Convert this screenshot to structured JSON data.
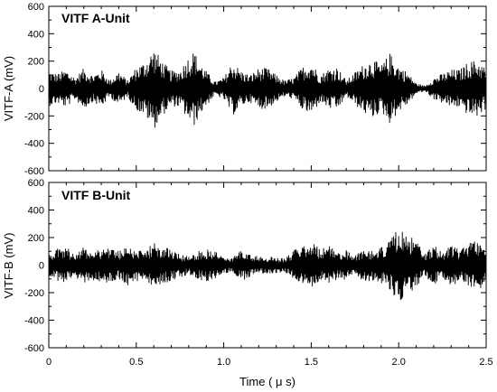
{
  "chart_data": [
    {
      "type": "line",
      "title": "VITF A-Unit",
      "xlabel": "",
      "ylabel": "VITF-A (mV)",
      "xlim": [
        0,
        2.5
      ],
      "ylim": [
        -600,
        600
      ],
      "yticks": [
        "600",
        "400",
        "200",
        "0",
        "-200",
        "-400",
        "-600"
      ],
      "grid": false,
      "series": [
        {
          "color": "#000000",
          "envelope": [
            [
              0.0,
              130
            ],
            [
              0.05,
              110
            ],
            [
              0.1,
              140
            ],
            [
              0.15,
              80
            ],
            [
              0.2,
              150
            ],
            [
              0.25,
              100
            ],
            [
              0.3,
              140
            ],
            [
              0.35,
              60
            ],
            [
              0.4,
              130
            ],
            [
              0.45,
              60
            ],
            [
              0.5,
              160
            ],
            [
              0.55,
              200
            ],
            [
              0.6,
              300
            ],
            [
              0.65,
              200
            ],
            [
              0.7,
              130
            ],
            [
              0.75,
              140
            ],
            [
              0.8,
              240
            ],
            [
              0.83,
              280
            ],
            [
              0.86,
              200
            ],
            [
              0.9,
              130
            ],
            [
              0.95,
              50
            ],
            [
              1.0,
              80
            ],
            [
              1.05,
              200
            ],
            [
              1.1,
              130
            ],
            [
              1.15,
              100
            ],
            [
              1.2,
              150
            ],
            [
              1.25,
              150
            ],
            [
              1.3,
              100
            ],
            [
              1.35,
              60
            ],
            [
              1.4,
              80
            ],
            [
              1.45,
              160
            ],
            [
              1.5,
              200
            ],
            [
              1.55,
              100
            ],
            [
              1.6,
              150
            ],
            [
              1.65,
              160
            ],
            [
              1.7,
              60
            ],
            [
              1.75,
              120
            ],
            [
              1.8,
              180
            ],
            [
              1.85,
              220
            ],
            [
              1.9,
              170
            ],
            [
              1.95,
              260
            ],
            [
              2.0,
              170
            ],
            [
              2.05,
              120
            ],
            [
              2.1,
              40
            ],
            [
              2.15,
              20
            ],
            [
              2.2,
              80
            ],
            [
              2.25,
              110
            ],
            [
              2.3,
              140
            ],
            [
              2.35,
              140
            ],
            [
              2.4,
              200
            ],
            [
              2.45,
              210
            ],
            [
              2.5,
              150
            ]
          ]
        }
      ]
    },
    {
      "type": "line",
      "title": "VITF B-Unit",
      "xlabel": "Time ( μ s)",
      "ylabel": "VITF-B (mV)",
      "xlim": [
        0,
        2.5
      ],
      "ylim": [
        -600,
        600
      ],
      "yticks": [
        "600",
        "400",
        "200",
        "0",
        "-200",
        "-400",
        "-600"
      ],
      "xticks": [
        "0",
        "0.5",
        "1.0",
        "1.5",
        "2.0",
        "2.5"
      ],
      "grid": false,
      "series": [
        {
          "color": "#000000",
          "envelope": [
            [
              0.0,
              90
            ],
            [
              0.05,
              120
            ],
            [
              0.1,
              130
            ],
            [
              0.15,
              90
            ],
            [
              0.2,
              130
            ],
            [
              0.25,
              110
            ],
            [
              0.3,
              120
            ],
            [
              0.35,
              140
            ],
            [
              0.4,
              100
            ],
            [
              0.45,
              150
            ],
            [
              0.5,
              120
            ],
            [
              0.55,
              90
            ],
            [
              0.6,
              180
            ],
            [
              0.65,
              130
            ],
            [
              0.7,
              120
            ],
            [
              0.75,
              90
            ],
            [
              0.8,
              70
            ],
            [
              0.85,
              100
            ],
            [
              0.9,
              120
            ],
            [
              0.95,
              110
            ],
            [
              1.0,
              60
            ],
            [
              1.05,
              50
            ],
            [
              1.1,
              120
            ],
            [
              1.15,
              90
            ],
            [
              1.2,
              60
            ],
            [
              1.25,
              60
            ],
            [
              1.3,
              60
            ],
            [
              1.35,
              50
            ],
            [
              1.4,
              110
            ],
            [
              1.45,
              150
            ],
            [
              1.5,
              180
            ],
            [
              1.55,
              120
            ],
            [
              1.6,
              140
            ],
            [
              1.65,
              100
            ],
            [
              1.7,
              110
            ],
            [
              1.75,
              70
            ],
            [
              1.8,
              130
            ],
            [
              1.85,
              110
            ],
            [
              1.9,
              130
            ],
            [
              1.95,
              180
            ],
            [
              2.0,
              270
            ],
            [
              2.05,
              220
            ],
            [
              2.1,
              180
            ],
            [
              2.15,
              80
            ],
            [
              2.2,
              150
            ],
            [
              2.25,
              90
            ],
            [
              2.3,
              160
            ],
            [
              2.35,
              110
            ],
            [
              2.4,
              180
            ],
            [
              2.45,
              190
            ],
            [
              2.5,
              150
            ]
          ]
        }
      ]
    }
  ]
}
